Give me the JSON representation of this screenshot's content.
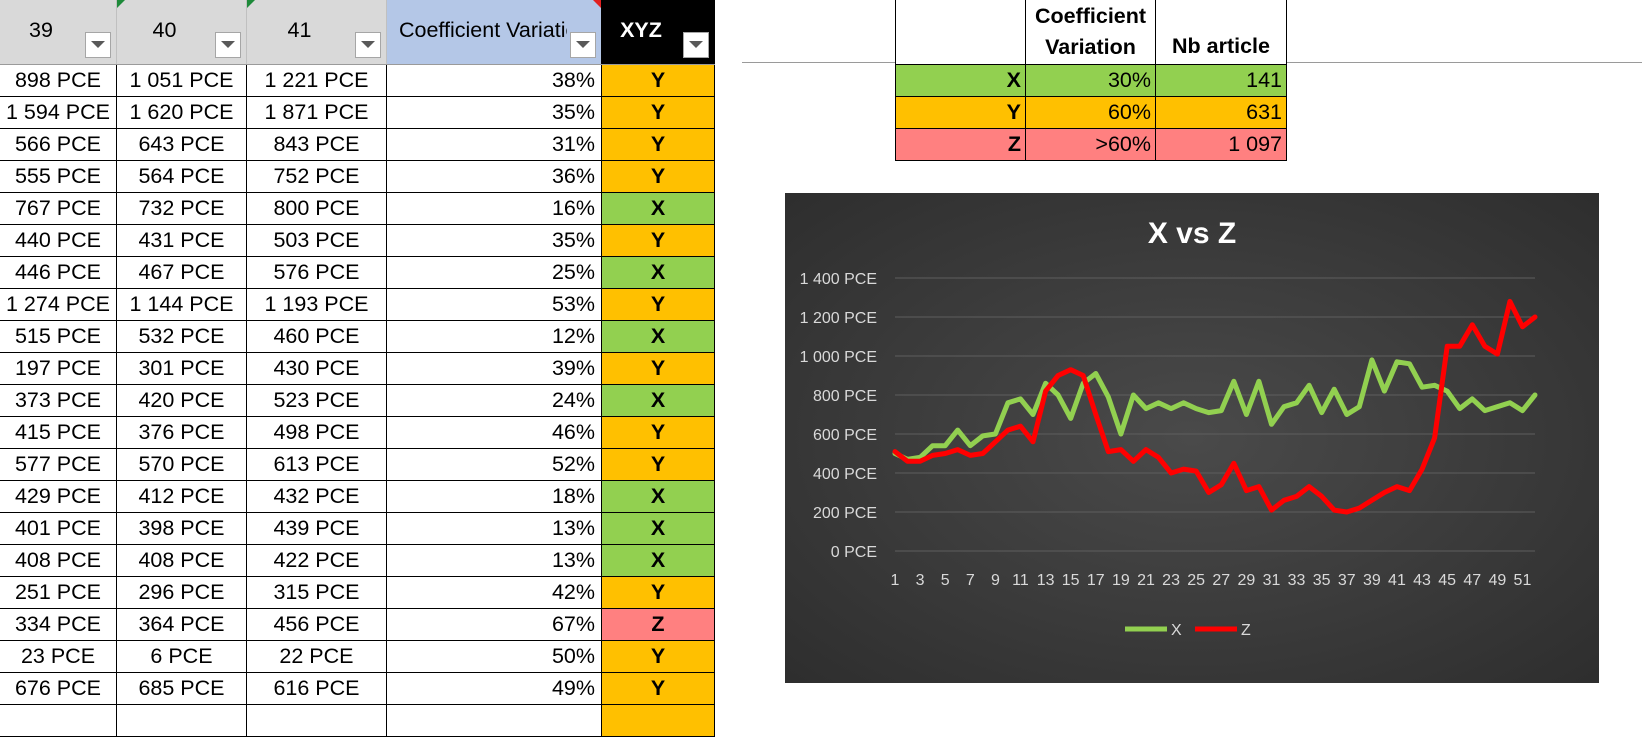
{
  "main_table": {
    "headers": [
      {
        "label": "39",
        "style": "gray"
      },
      {
        "label": "40",
        "style": "gray"
      },
      {
        "label": "41",
        "style": "gray"
      },
      {
        "label": "Coefficient Variation",
        "style": "blue"
      },
      {
        "label": "XYZ",
        "style": "black"
      }
    ],
    "rows": [
      [
        "898 PCE",
        "1 051 PCE",
        "1 221 PCE",
        "38%",
        "Y"
      ],
      [
        "1 594 PCE",
        "1 620 PCE",
        "1 871 PCE",
        "35%",
        "Y"
      ],
      [
        "566 PCE",
        "643 PCE",
        "843 PCE",
        "31%",
        "Y"
      ],
      [
        "555 PCE",
        "564 PCE",
        "752 PCE",
        "36%",
        "Y"
      ],
      [
        "767 PCE",
        "732 PCE",
        "800 PCE",
        "16%",
        "X"
      ],
      [
        "440 PCE",
        "431 PCE",
        "503 PCE",
        "35%",
        "Y"
      ],
      [
        "446 PCE",
        "467 PCE",
        "576 PCE",
        "25%",
        "X"
      ],
      [
        "1 274 PCE",
        "1 144 PCE",
        "1 193 PCE",
        "53%",
        "Y"
      ],
      [
        "515 PCE",
        "532 PCE",
        "460 PCE",
        "12%",
        "X"
      ],
      [
        "197 PCE",
        "301 PCE",
        "430 PCE",
        "39%",
        "Y"
      ],
      [
        "373 PCE",
        "420 PCE",
        "523 PCE",
        "24%",
        "X"
      ],
      [
        "415 PCE",
        "376 PCE",
        "498 PCE",
        "46%",
        "Y"
      ],
      [
        "577 PCE",
        "570 PCE",
        "613 PCE",
        "52%",
        "Y"
      ],
      [
        "429 PCE",
        "412 PCE",
        "432 PCE",
        "18%",
        "X"
      ],
      [
        "401 PCE",
        "398 PCE",
        "439 PCE",
        "13%",
        "X"
      ],
      [
        "408 PCE",
        "408 PCE",
        "422 PCE",
        "13%",
        "X"
      ],
      [
        "251 PCE",
        "296 PCE",
        "315 PCE",
        "42%",
        "Y"
      ],
      [
        "334 PCE",
        "364 PCE",
        "456 PCE",
        "67%",
        "Z"
      ],
      [
        "23 PCE",
        "6 PCE",
        "22 PCE",
        "50%",
        "Y"
      ],
      [
        "676 PCE",
        "685 PCE",
        "616 PCE",
        "49%",
        "Y"
      ],
      [
        "",
        "",
        "",
        "",
        ""
      ]
    ]
  },
  "summary_table": {
    "headers": [
      "",
      "Coefficient Variation",
      "Nb article"
    ],
    "header_lines": [
      [
        "",
        ""
      ],
      [
        "Coefficient",
        "Variation"
      ],
      [
        "",
        "Nb article"
      ]
    ],
    "rows": [
      {
        "class": "X",
        "cv": "30%",
        "count": "141",
        "color": "#92d050"
      },
      {
        "class": "Y",
        "cv": "60%",
        "count": "631",
        "color": "#ffc000"
      },
      {
        "class": "Z",
        "cv": ">60%",
        "count": "1 097",
        "color": "#ff8080"
      }
    ]
  },
  "colors": {
    "X": "#92d050",
    "Y": "#ffc000",
    "Z": "#ff8080"
  },
  "chart_data": {
    "type": "line",
    "title": "X vs Z",
    "background": "#404040",
    "x": [
      1,
      2,
      3,
      4,
      5,
      6,
      7,
      8,
      9,
      10,
      11,
      12,
      13,
      14,
      15,
      16,
      17,
      18,
      19,
      20,
      21,
      22,
      23,
      24,
      25,
      26,
      27,
      28,
      29,
      30,
      31,
      32,
      33,
      34,
      35,
      36,
      37,
      38,
      39,
      40,
      41,
      42,
      43,
      44,
      45,
      46,
      47,
      48,
      49,
      50,
      51,
      52
    ],
    "x_tick_labels": [
      "1",
      "3",
      "5",
      "7",
      "9",
      "11",
      "13",
      "15",
      "17",
      "19",
      "21",
      "23",
      "25",
      "27",
      "29",
      "31",
      "33",
      "35",
      "37",
      "39",
      "41",
      "43",
      "45",
      "47",
      "49",
      "51"
    ],
    "y_tick_labels": [
      "0 PCE",
      "200 PCE",
      "400 PCE",
      "600 PCE",
      "800 PCE",
      "1 000 PCE",
      "1 200 PCE",
      "1 400 PCE"
    ],
    "ylim": [
      0,
      1400
    ],
    "y_step": 200,
    "grid": true,
    "legend_position": "bottom",
    "series": [
      {
        "name": "X",
        "color": "#92d050",
        "values": [
          500,
          470,
          480,
          540,
          540,
          620,
          540,
          590,
          600,
          760,
          780,
          700,
          860,
          800,
          680,
          860,
          910,
          790,
          600,
          800,
          730,
          760,
          730,
          760,
          730,
          710,
          720,
          870,
          700,
          870,
          650,
          740,
          760,
          850,
          710,
          830,
          700,
          740,
          980,
          820,
          970,
          960,
          840,
          850,
          820,
          730,
          780,
          720,
          740,
          760,
          720,
          800
        ]
      },
      {
        "name": "Z",
        "color": "#ff0000",
        "values": [
          510,
          460,
          460,
          490,
          500,
          520,
          490,
          500,
          560,
          620,
          640,
          560,
          820,
          900,
          930,
          900,
          700,
          510,
          520,
          460,
          520,
          480,
          400,
          420,
          410,
          300,
          340,
          450,
          310,
          330,
          210,
          260,
          280,
          330,
          280,
          210,
          200,
          220,
          260,
          300,
          330,
          310,
          420,
          580,
          1050,
          1050,
          1160,
          1050,
          1010,
          1280,
          1150,
          1200
        ]
      }
    ]
  }
}
